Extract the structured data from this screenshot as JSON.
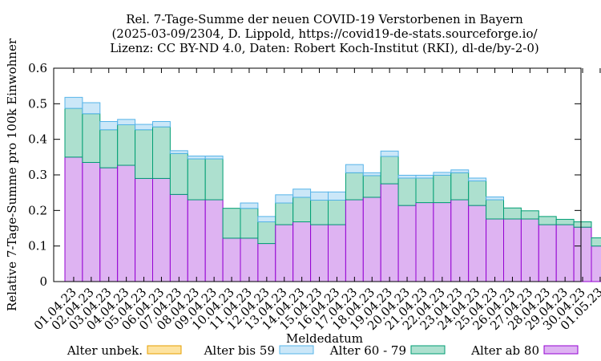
{
  "chart_data": {
    "type": "bar",
    "stacked": true,
    "title_lines": [
      "Rel. 7-Tage-Summe der neuen COVID-19 Verstorbenen in Bayern",
      "(2025-03-09/2304, D. Lippold, https://covid19-de-stats.sourceforge.io/",
      "Lizenz: CC BY-ND 4.0, Daten: Robert Koch-Institut (RKI), dl-de/by-2-0)"
    ],
    "xlabel": "Meldedatum",
    "ylabel": "Relative 7-Tage-Summe pro 100k Einwohner",
    "ylim": [
      0,
      0.6
    ],
    "yticks": [
      "0",
      "0.1",
      "0.2",
      "0.3",
      "0.4",
      "0.5",
      "0.6"
    ],
    "grid": false,
    "legend_position": "bottom",
    "categories": [
      "01.04.23",
      "02.04.23",
      "03.04.23",
      "04.04.23",
      "05.04.23",
      "06.04.23",
      "07.04.23",
      "08.04.23",
      "09.04.23",
      "10.04.23",
      "11.04.23",
      "12.04.23",
      "13.04.23",
      "14.04.23",
      "15.04.23",
      "16.04.23",
      "17.04.23",
      "18.04.23",
      "19.04.23",
      "20.04.23",
      "21.04.23",
      "22.04.23",
      "23.04.23",
      "24.04.23",
      "25.04.23",
      "26.04.23",
      "27.04.23",
      "28.04.23",
      "29.04.23",
      "30.04.23",
      "01.05.23"
    ],
    "series": [
      {
        "name": "Alter unbek.",
        "fill": "#fde3a0",
        "stroke": "#e69f00",
        "values": [
          0,
          0,
          0,
          0,
          0,
          0,
          0,
          0,
          0,
          0,
          0,
          0,
          0,
          0,
          0,
          0,
          0,
          0,
          0,
          0,
          0,
          0,
          0,
          0,
          0,
          0,
          0,
          0,
          0,
          0,
          0
        ]
      },
      {
        "name": "Alter ab 80",
        "fill": "#deb3f2",
        "stroke": "#9400d3",
        "values": [
          0.35,
          0.335,
          0.32,
          0.327,
          0.29,
          0.29,
          0.245,
          0.23,
          0.23,
          0.122,
          0.122,
          0.107,
          0.16,
          0.168,
          0.16,
          0.16,
          0.23,
          0.237,
          0.275,
          0.214,
          0.222,
          0.222,
          0.23,
          0.214,
          0.176,
          0.176,
          0.176,
          0.16,
          0.16,
          0.153,
          0.1
        ]
      },
      {
        "name": "Alter 60 - 79",
        "fill": "#ade0cf",
        "stroke": "#009e73",
        "values": [
          0.137,
          0.137,
          0.107,
          0.114,
          0.137,
          0.145,
          0.115,
          0.115,
          0.115,
          0.084,
          0.084,
          0.061,
          0.061,
          0.069,
          0.069,
          0.069,
          0.076,
          0.061,
          0.077,
          0.077,
          0.069,
          0.077,
          0.076,
          0.069,
          0.054,
          0.031,
          0.023,
          0.023,
          0.015,
          0.015,
          0.023
        ]
      },
      {
        "name": "Alter bis 59",
        "fill": "#cbe7f8",
        "stroke": "#56b4e9",
        "values": [
          0.031,
          0.031,
          0.023,
          0.015,
          0.015,
          0.015,
          0.008,
          0.008,
          0.008,
          0,
          0.015,
          0.015,
          0.023,
          0.023,
          0.023,
          0.023,
          0.023,
          0.008,
          0.015,
          0.008,
          0.008,
          0.008,
          0.008,
          0.008,
          0.008,
          0,
          0,
          0,
          0,
          0,
          0
        ]
      }
    ],
    "legend_order": [
      "Alter unbek.",
      "Alter bis 59",
      "Alter 60 - 79",
      "Alter ab 80"
    ]
  }
}
